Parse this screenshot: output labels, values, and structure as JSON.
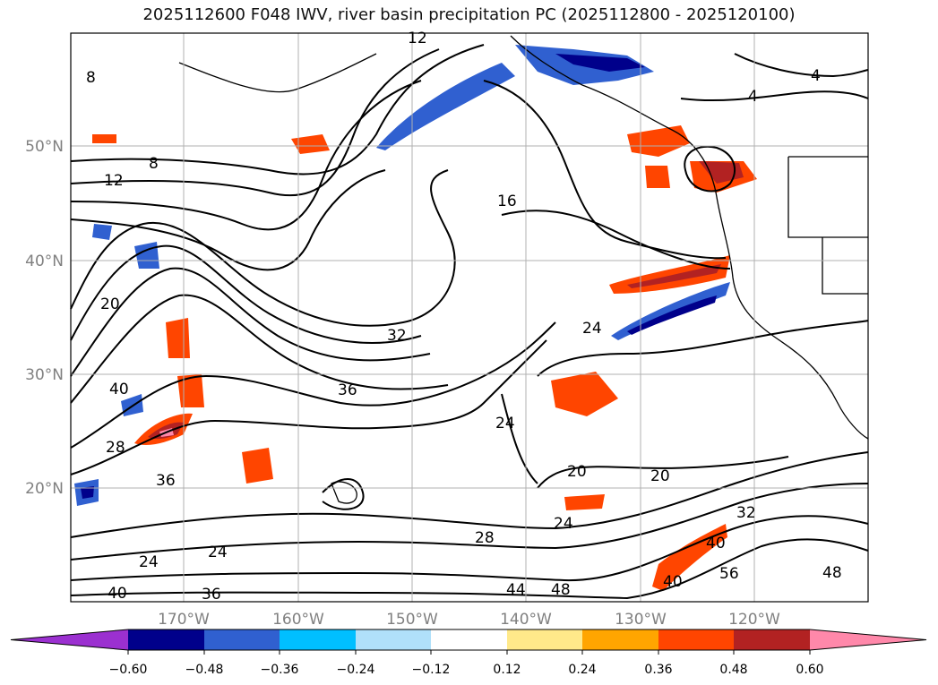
{
  "title": "2025112600 F048 IWV, river basin precipitation PC (2025112800 - 2025120100)",
  "map": {
    "lat_labels": [
      "50°N",
      "40°N",
      "30°N",
      "20°N"
    ],
    "lon_labels": [
      "170°W",
      "160°W",
      "150°W",
      "140°W",
      "130°W",
      "120°W"
    ],
    "contour_labels": [
      "4",
      "4",
      "8",
      "8",
      "12",
      "12",
      "16",
      "20",
      "20",
      "20",
      "24",
      "24",
      "24",
      "24",
      "24",
      "28",
      "28",
      "32",
      "32",
      "36",
      "36",
      "36",
      "40",
      "40",
      "40",
      "44",
      "48",
      "48",
      "56",
      "40"
    ],
    "colors": {
      "land_outline": "#000000",
      "grid": "#b0b0b0"
    }
  },
  "colorbar": {
    "ticks": [
      "−0.60",
      "−0.48",
      "−0.36",
      "−0.24",
      "−0.12",
      "0.12",
      "0.24",
      "0.36",
      "0.48",
      "0.60"
    ],
    "colors": [
      "#9b30d0",
      "#00008b",
      "#3060d0",
      "#00bfff",
      "#b0e0fa",
      "#ffffff",
      "#ffe98a",
      "#ffa500",
      "#ff4500",
      "#b22222",
      "#ff88aa"
    ]
  }
}
